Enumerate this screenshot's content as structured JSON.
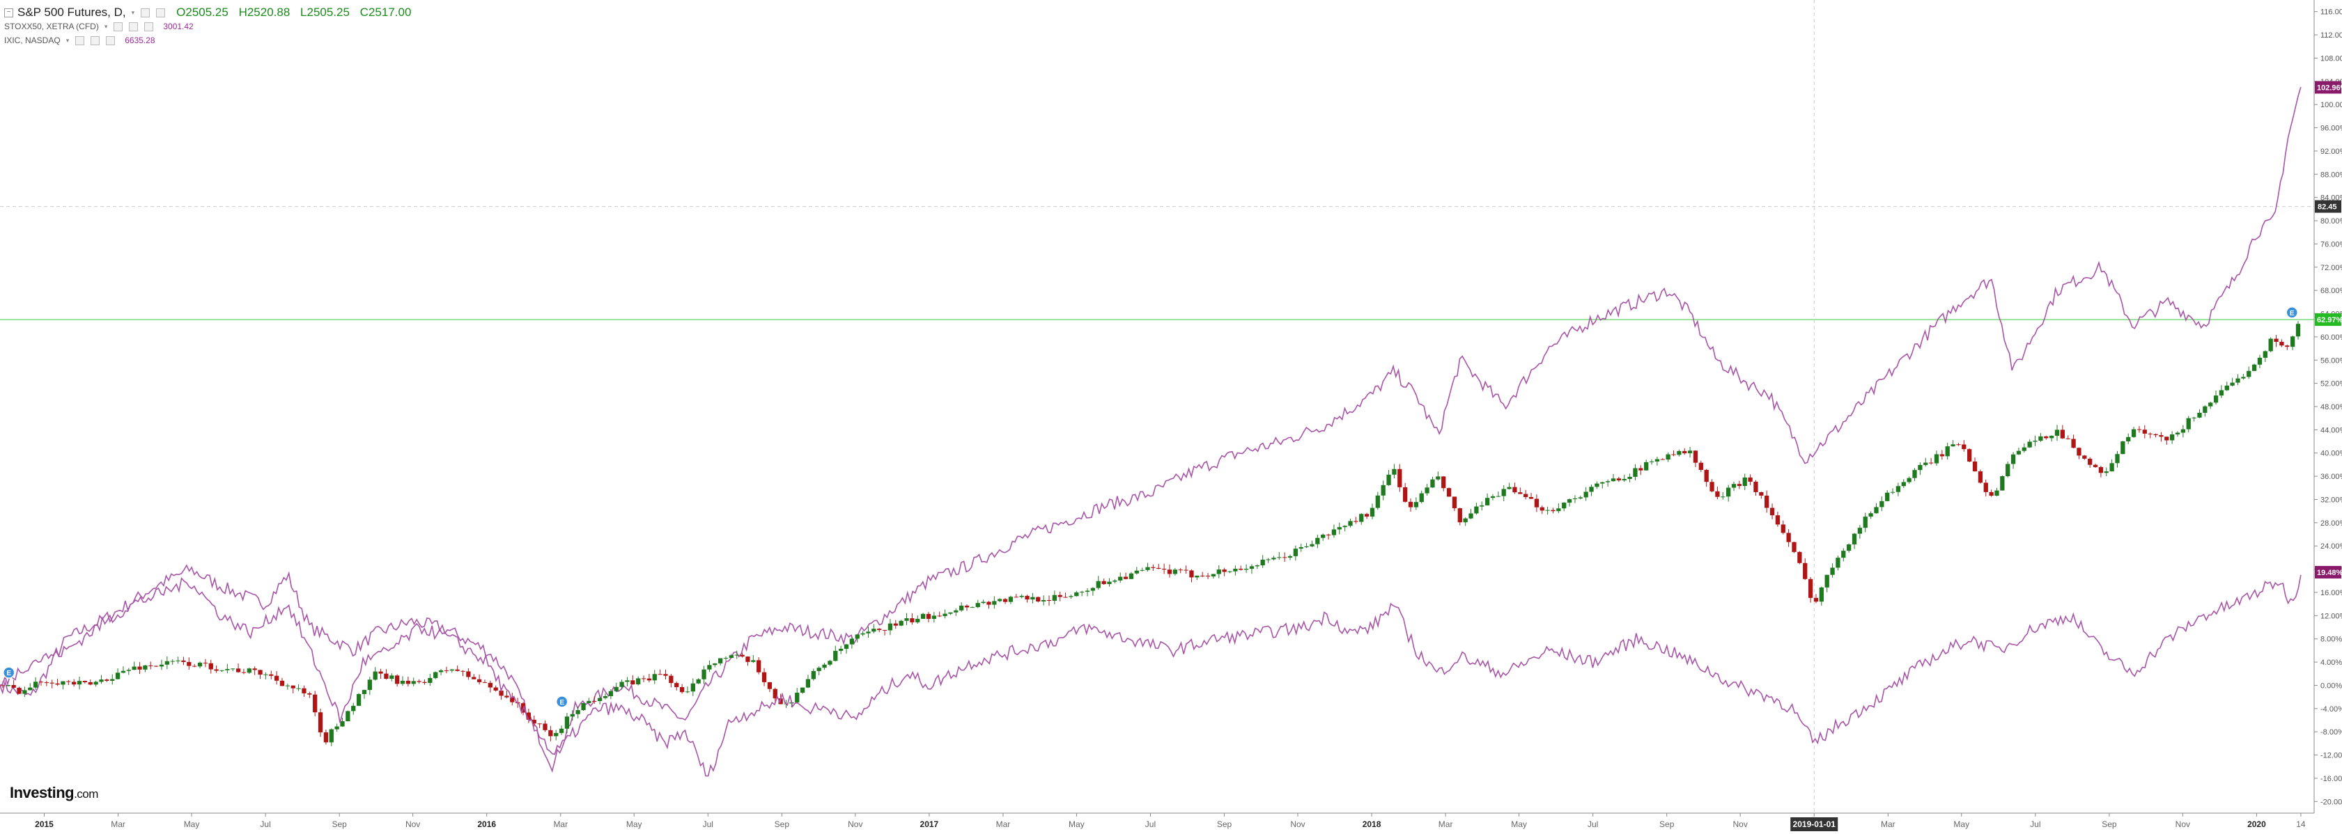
{
  "legend": {
    "main_symbol": "S&P 500 Futures, D,",
    "ohlc": {
      "open": "O2505.25",
      "high": "H2520.88",
      "low": "L2505.25",
      "close": "C2517.00"
    },
    "comparisons": [
      {
        "label": "STOXX50, XETRA (CFD)",
        "value": "3001.42"
      },
      {
        "label": "IXIC, NASDAQ",
        "value": "6635.28"
      }
    ]
  },
  "brand": {
    "name": "Investing",
    "suffix": ".com"
  },
  "colors": {
    "background": "#ffffff",
    "candle_up": "#1f7a1f",
    "candle_down": "#b01515",
    "series_line": "#a855a8",
    "grid": "#eeeeee",
    "crosshair": "#cccccc",
    "green_line": "#7ddc7d"
  },
  "chart_data": {
    "type": "line",
    "ylabel": "",
    "ylim": [
      -22,
      118
    ],
    "y_ticks": [
      "116.00%",
      "112.00%",
      "108.00%",
      "104.00%",
      "100.00%",
      "96.00%",
      "92.00%",
      "88.00%",
      "84.00%",
      "80.00%",
      "76.00%",
      "72.00%",
      "68.00%",
      "64.00%",
      "60.00%",
      "56.00%",
      "52.00%",
      "48.00%",
      "44.00%",
      "40.00%",
      "36.00%",
      "32.00%",
      "28.00%",
      "24.00%",
      "20.00%",
      "16.00%",
      "12.00%",
      "8.00%",
      "4.00%",
      "0.00%",
      "-4.00%",
      "-8.00%",
      "-12.00%",
      "-16.00%",
      "-20.00%"
    ],
    "y_tick_values": [
      116,
      112,
      108,
      104,
      100,
      96,
      92,
      88,
      84,
      80,
      76,
      72,
      68,
      64,
      60,
      56,
      52,
      48,
      44,
      40,
      36,
      32,
      28,
      24,
      20,
      16,
      12,
      8,
      4,
      0,
      -4,
      -8,
      -12,
      -16,
      -20
    ],
    "x_ticks": [
      "2015",
      "Mar",
      "May",
      "Jul",
      "Sep",
      "Nov",
      "2016",
      "Mar",
      "May",
      "Jul",
      "Sep",
      "Nov",
      "2017",
      "Mar",
      "May",
      "Jul",
      "Sep",
      "Nov",
      "2018",
      "Mar",
      "May",
      "Jul",
      "Sep",
      "Nov",
      "2019-01-01",
      "Mar",
      "May",
      "Jul",
      "Sep",
      "Nov",
      "2020",
      "14"
    ],
    "x_tick_values": [
      2015.0,
      2015.167,
      2015.333,
      2015.5,
      2015.667,
      2015.833,
      2016.0,
      2016.167,
      2016.333,
      2016.5,
      2016.667,
      2016.833,
      2017.0,
      2017.167,
      2017.333,
      2017.5,
      2017.667,
      2017.833,
      2018.0,
      2018.167,
      2018.333,
      2018.5,
      2018.667,
      2018.833,
      2019.0,
      2019.167,
      2019.333,
      2019.5,
      2019.667,
      2019.833,
      2020.0,
      2020.1
    ],
    "bold_x_ticks": [
      "2015",
      "2016",
      "2017",
      "2018",
      "2020"
    ],
    "xlim": [
      2014.9,
      2020.13
    ],
    "crosshair": {
      "x": 2019.0,
      "x_label": "2019-01-01",
      "y": 82.45,
      "y_label": "82.45"
    },
    "horizontal_line": {
      "y": 62.97
    },
    "price_labels": [
      {
        "text": "102.96%",
        "y": 102.96,
        "color": "#8a1a6a"
      },
      {
        "text": "62.97%",
        "y": 62.97,
        "color": "#22bb22"
      },
      {
        "text": "19.48%",
        "y": 19.48,
        "color": "#8a1a6a"
      }
    ],
    "series": [
      {
        "name": "IXIC, NASDAQ",
        "style": "line",
        "x": [
          2014.9,
          2014.97,
          2015.05,
          2015.15,
          2015.25,
          2015.33,
          2015.4,
          2015.5,
          2015.55,
          2015.6,
          2015.65,
          2015.7,
          2015.75,
          2015.83,
          2015.9,
          2015.95,
          2016.0,
          2016.05,
          2016.1,
          2016.15,
          2016.2,
          2016.3,
          2016.4,
          2016.45,
          2016.5,
          2016.55,
          2016.6,
          2016.67,
          2016.75,
          2016.83,
          2016.9,
          2017.0,
          2017.1,
          2017.2,
          2017.3,
          2017.4,
          2017.5,
          2017.6,
          2017.7,
          2017.8,
          2017.9,
          2018.0,
          2018.05,
          2018.1,
          2018.15,
          2018.2,
          2018.3,
          2018.4,
          2018.5,
          2018.6,
          2018.67,
          2018.72,
          2018.78,
          2018.85,
          2018.9,
          2018.98,
          2019.05,
          2019.15,
          2019.25,
          2019.33,
          2019.4,
          2019.45,
          2019.55,
          2019.65,
          2019.72,
          2019.8,
          2019.88,
          2019.95,
          2020.0,
          2020.04,
          2020.07,
          2020.1
        ],
        "y": [
          0,
          -2,
          8,
          12,
          17,
          20,
          17,
          14,
          19,
          10,
          8,
          6,
          9,
          11,
          10,
          8,
          6,
          2,
          -6,
          -14,
          -4,
          0,
          -4,
          -6,
          0,
          4,
          8,
          10,
          9,
          8,
          12,
          18,
          21,
          25,
          28,
          31,
          33,
          37,
          40,
          42,
          45,
          50,
          54,
          50,
          43,
          56,
          48,
          58,
          63,
          66,
          68,
          64,
          56,
          52,
          50,
          39,
          44,
          52,
          60,
          66,
          70,
          54,
          68,
          72,
          62,
          66,
          62,
          70,
          78,
          80,
          94,
          103
        ]
      },
      {
        "name": "S&P 500 Futures",
        "style": "candles",
        "x": [
          2014.9,
          2014.95,
          2015.0,
          2015.1,
          2015.2,
          2015.3,
          2015.4,
          2015.5,
          2015.6,
          2015.63,
          2015.67,
          2015.75,
          2015.83,
          2015.92,
          2016.0,
          2016.05,
          2016.1,
          2016.15,
          2016.2,
          2016.3,
          2016.4,
          2016.45,
          2016.5,
          2016.55,
          2016.6,
          2016.67,
          2016.75,
          2016.83,
          2016.9,
          2017.0,
          2017.1,
          2017.2,
          2017.3,
          2017.4,
          2017.5,
          2017.6,
          2017.7,
          2017.8,
          2017.9,
          2018.0,
          2018.05,
          2018.08,
          2018.15,
          2018.2,
          2018.3,
          2018.4,
          2018.5,
          2018.6,
          2018.67,
          2018.72,
          2018.78,
          2018.85,
          2018.9,
          2018.96,
          2019.0,
          2019.05,
          2019.15,
          2019.25,
          2019.33,
          2019.4,
          2019.45,
          2019.55,
          2019.65,
          2019.72,
          2019.8,
          2019.88,
          2019.95,
          2020.0,
          2020.04,
          2020.07,
          2020.1
        ],
        "y": [
          0,
          -1,
          1,
          0,
          3,
          4,
          3,
          2,
          -2,
          -10,
          -6,
          2,
          0,
          3,
          0,
          -2,
          -6,
          -9,
          -4,
          0,
          2,
          -2,
          4,
          5,
          4,
          -4,
          3,
          8,
          10,
          12,
          14,
          15,
          15,
          18,
          20,
          19,
          20,
          22,
          26,
          30,
          38,
          30,
          36,
          28,
          34,
          30,
          34,
          37,
          40,
          40,
          32,
          36,
          30,
          22,
          14,
          22,
          32,
          38,
          42,
          32,
          40,
          44,
          36,
          44,
          42,
          48,
          52,
          56,
          60,
          58,
          63
        ]
      },
      {
        "name": "STOXX50, XETRA (CFD)",
        "style": "line",
        "x": [
          2014.9,
          2014.97,
          2015.05,
          2015.12,
          2015.2,
          2015.27,
          2015.33,
          2015.4,
          2015.47,
          2015.55,
          2015.6,
          2015.67,
          2015.72,
          2015.78,
          2015.85,
          2015.92,
          2016.0,
          2016.05,
          2016.1,
          2016.15,
          2016.2,
          2016.25,
          2016.3,
          2016.35,
          2016.4,
          2016.45,
          2016.5,
          2016.55,
          2016.62,
          2016.67,
          2016.72,
          2016.78,
          2016.83,
          2016.88,
          2016.95,
          2017.0,
          2017.1,
          2017.2,
          2017.3,
          2017.35,
          2017.45,
          2017.55,
          2017.65,
          2017.75,
          2017.85,
          2017.9,
          2017.95,
          2018.0,
          2018.05,
          2018.1,
          2018.15,
          2018.2,
          2018.3,
          2018.4,
          2018.5,
          2018.6,
          2018.67,
          2018.75,
          2018.82,
          2018.9,
          2018.95,
          2019.0,
          2019.05,
          2019.15,
          2019.25,
          2019.35,
          2019.42,
          2019.5,
          2019.58,
          2019.65,
          2019.72,
          2019.8,
          2019.88,
          2019.95,
          2020.0,
          2020.05,
          2020.08,
          2020.1
        ],
        "y": [
          0,
          4,
          6,
          10,
          14,
          16,
          18,
          12,
          9,
          14,
          6,
          -6,
          4,
          6,
          10,
          8,
          4,
          -2,
          -6,
          -12,
          -8,
          -4,
          -4,
          -6,
          -10,
          -8,
          -16,
          -6,
          -4,
          -2,
          -4,
          -4,
          -6,
          -2,
          2,
          0,
          4,
          6,
          8,
          10,
          8,
          6,
          8,
          9,
          10,
          12,
          9,
          10,
          14,
          6,
          2,
          5,
          2,
          6,
          4,
          8,
          6,
          3,
          0,
          -2,
          -4,
          -10,
          -7,
          -2,
          4,
          8,
          6,
          10,
          12,
          6,
          2,
          8,
          12,
          14,
          16,
          18,
          14,
          19
        ]
      }
    ],
    "markers": [
      {
        "x": 2014.92,
        "y": 1,
        "symbol": "E"
      },
      {
        "x": 2016.17,
        "y": -4,
        "symbol": "E"
      },
      {
        "x": 2020.08,
        "y": 63,
        "symbol": "E"
      }
    ]
  }
}
